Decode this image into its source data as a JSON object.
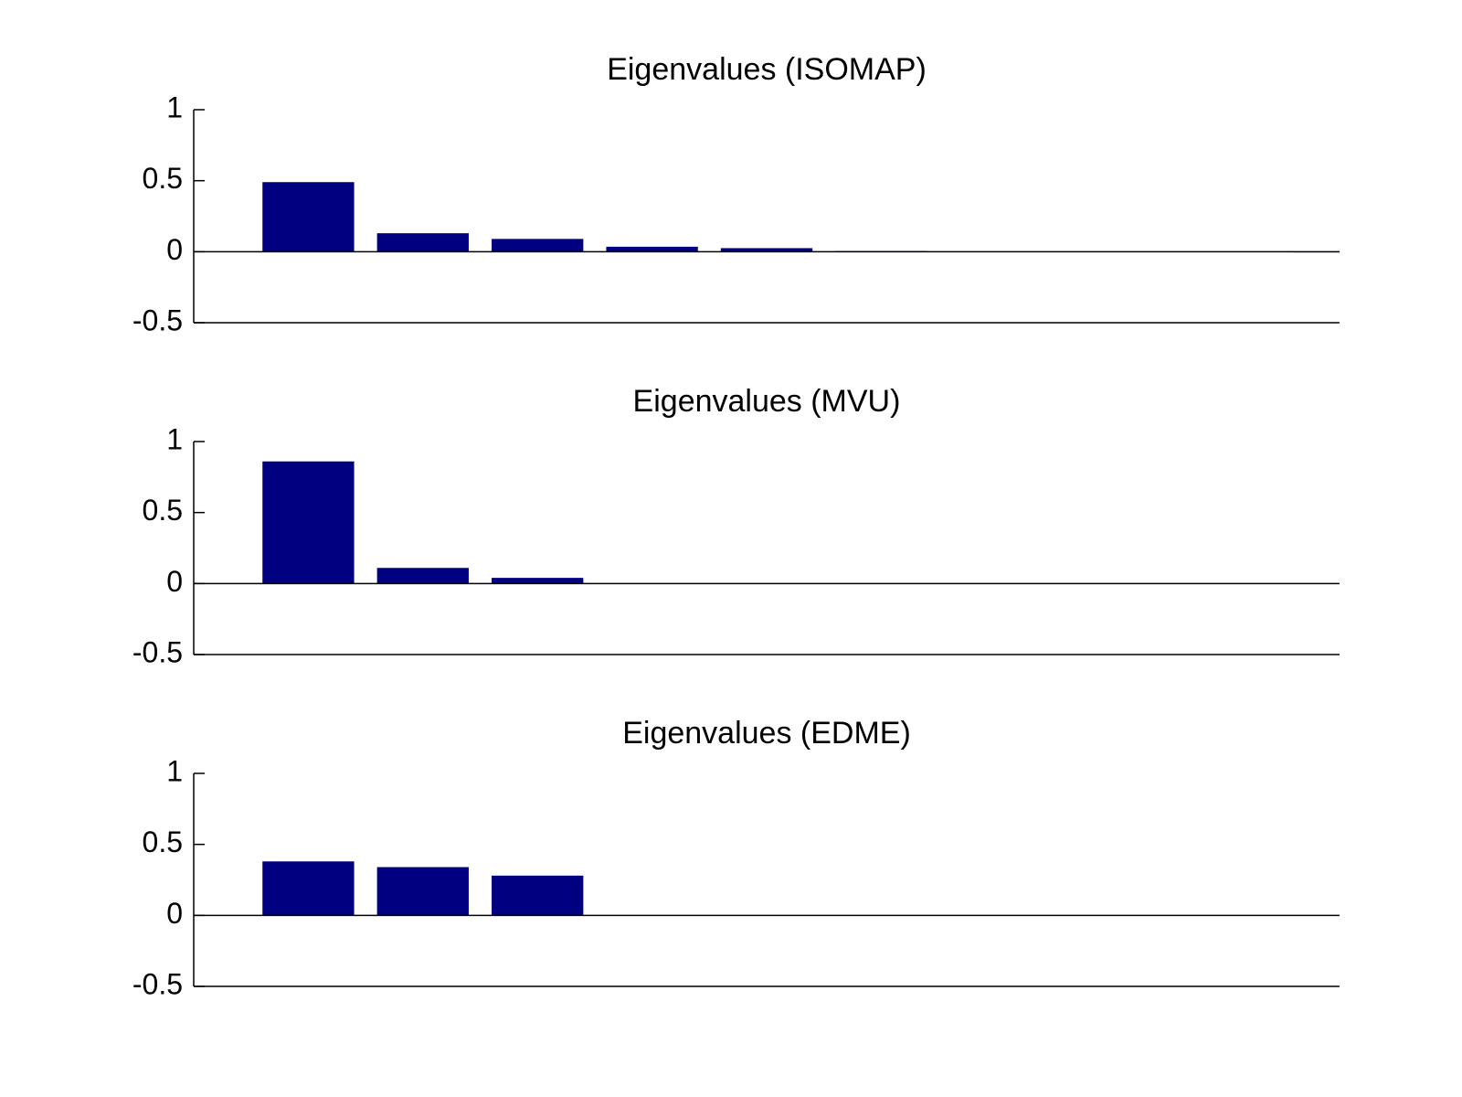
{
  "chart_data": [
    {
      "type": "bar",
      "title": "Eigenvalues (ISOMAP)",
      "x": [
        1,
        2,
        3,
        4,
        5,
        6,
        7,
        8,
        9,
        10
      ],
      "values": [
        0.49,
        0.13,
        0.09,
        0.035,
        0.025,
        0.005,
        0,
        0,
        0,
        -0.005
      ],
      "color": "#000080",
      "xlim": [
        0,
        10
      ],
      "ylim": [
        -0.5,
        1
      ],
      "yticks": [
        -0.5,
        0,
        0.5,
        1
      ]
    },
    {
      "type": "bar",
      "title": "Eigenvalues (MVU)",
      "x": [
        1,
        2,
        3,
        4,
        5,
        6,
        7,
        8,
        9,
        10
      ],
      "values": [
        0.86,
        0.11,
        0.04,
        0,
        0,
        0,
        0,
        0,
        0,
        0
      ],
      "color": "#000080",
      "xlim": [
        0,
        10
      ],
      "ylim": [
        -0.5,
        1
      ],
      "yticks": [
        -0.5,
        0,
        0.5,
        1
      ]
    },
    {
      "type": "bar",
      "title": "Eigenvalues (EDME)",
      "x": [
        1,
        2,
        3,
        4,
        5,
        6,
        7,
        8,
        9,
        10
      ],
      "values": [
        0.38,
        0.34,
        0.28,
        0,
        0,
        0,
        0,
        0,
        0,
        0
      ],
      "color": "#000080",
      "xlim": [
        0,
        10
      ],
      "ylim": [
        -0.5,
        1
      ],
      "yticks": [
        -0.5,
        0,
        0.5,
        1
      ]
    }
  ]
}
